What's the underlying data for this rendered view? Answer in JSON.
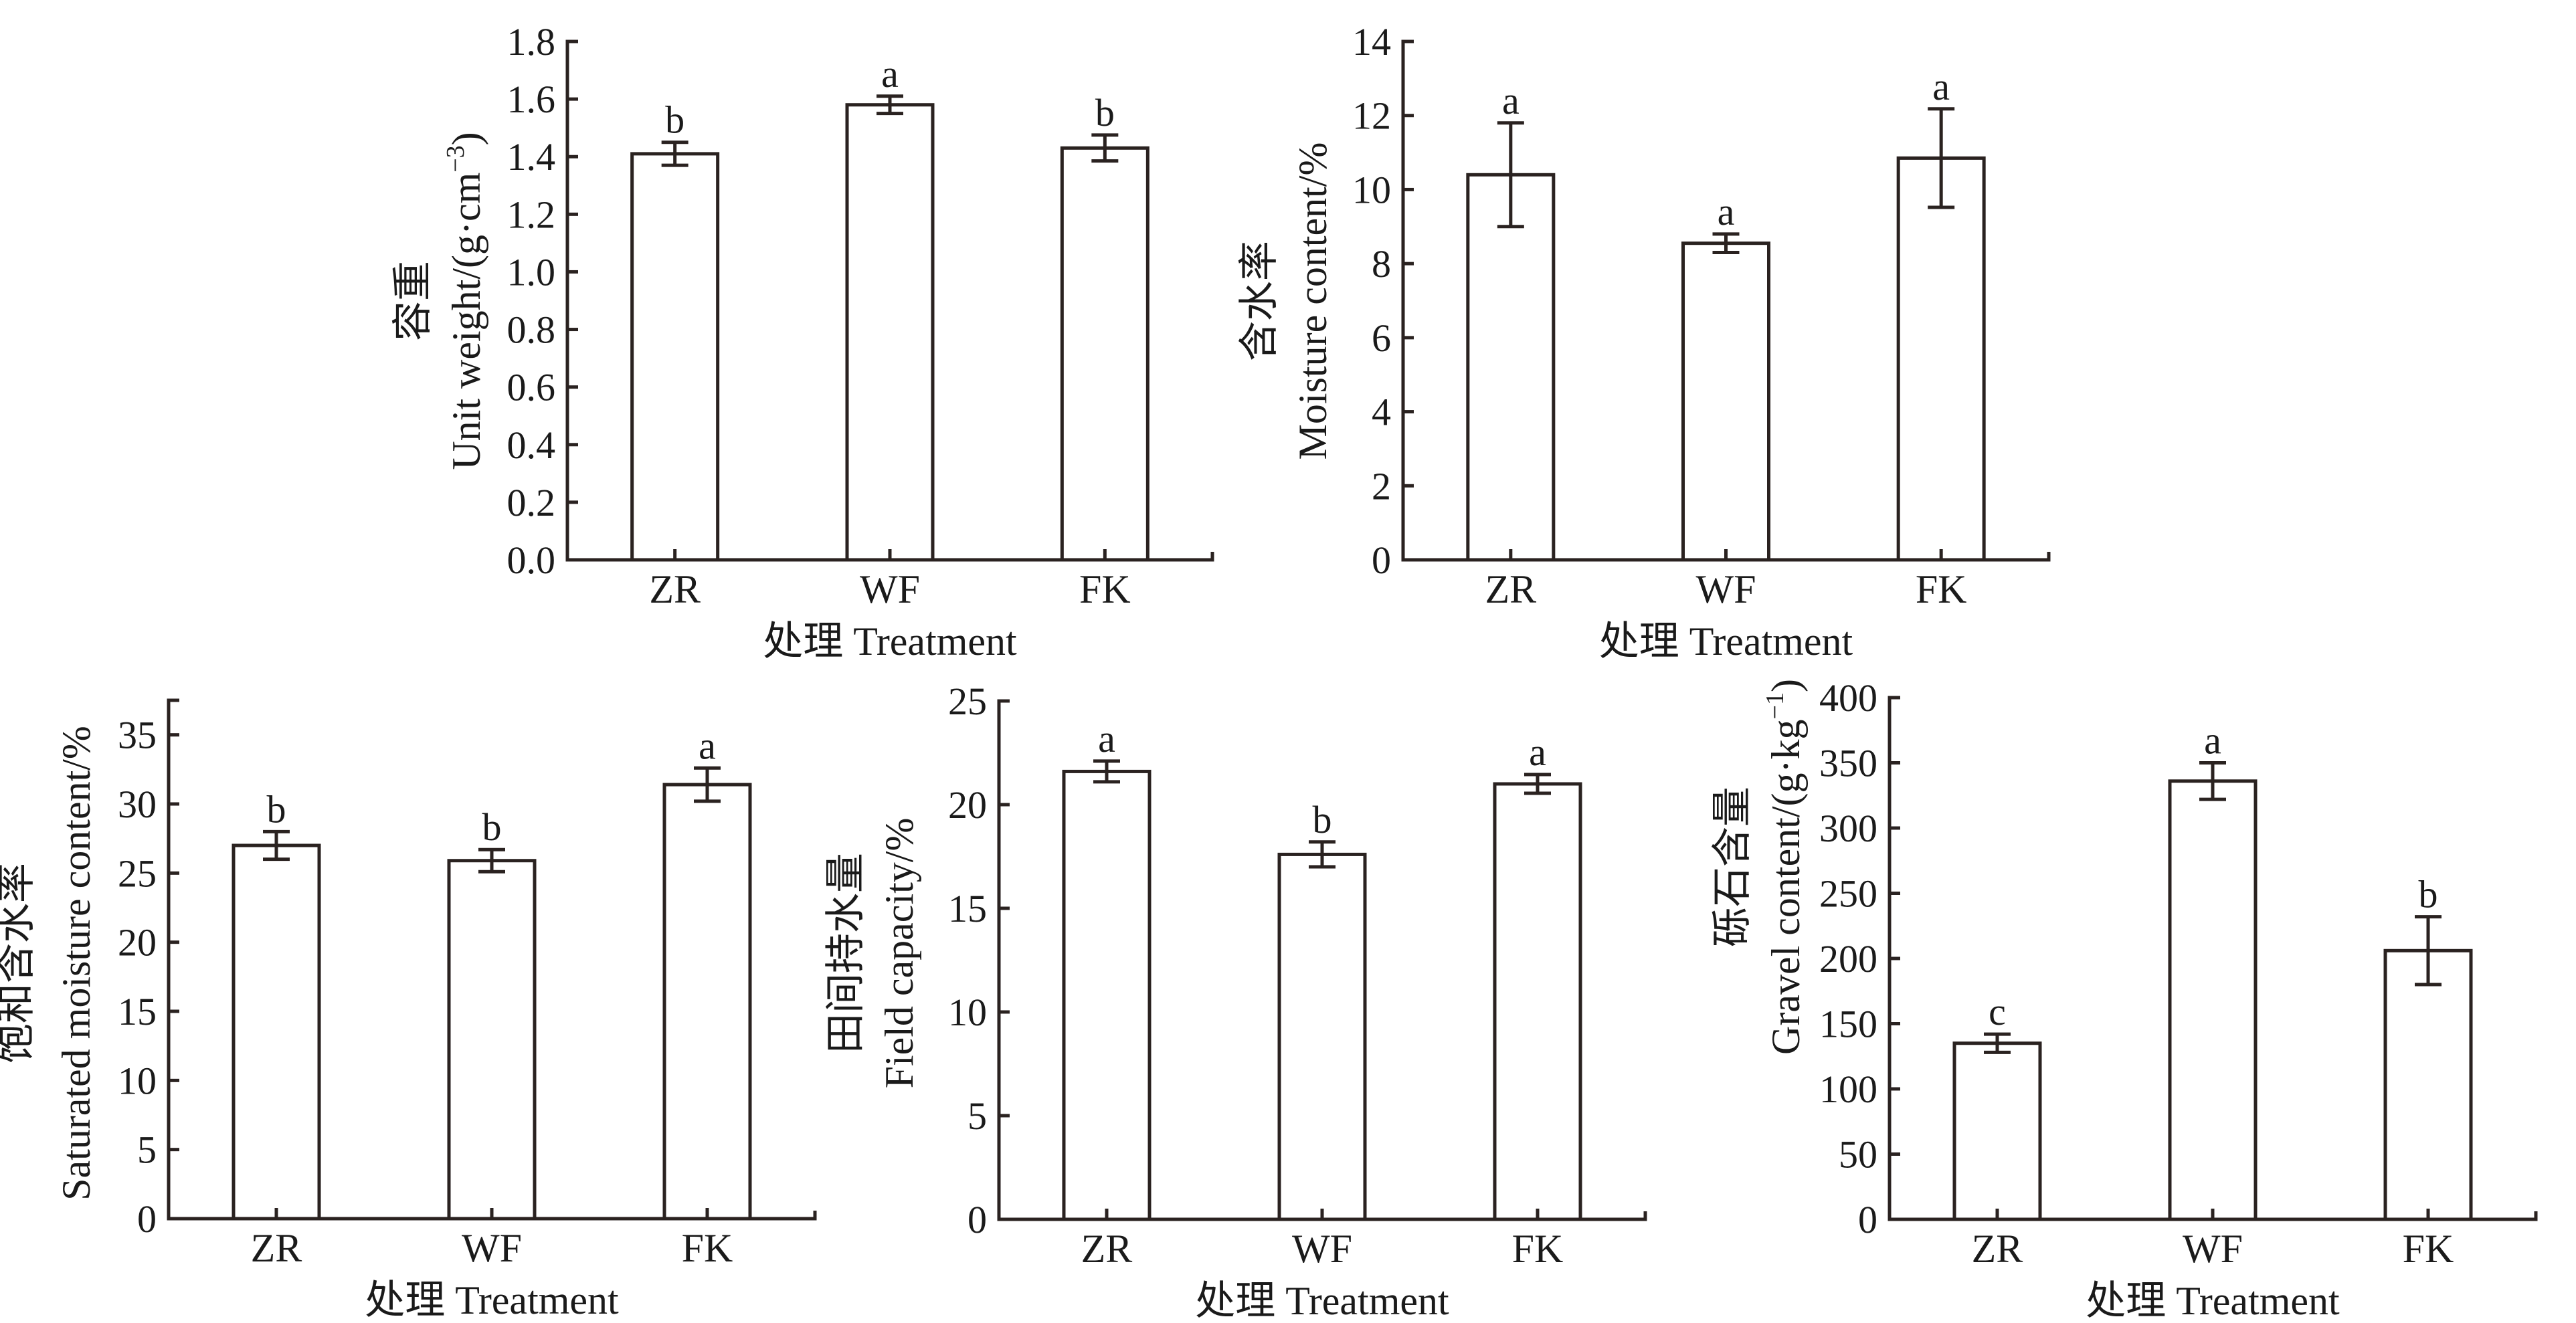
{
  "chart_data": [
    {
      "id": "unit-weight",
      "type": "bar",
      "categories": [
        "ZR",
        "WF",
        "FK"
      ],
      "values": [
        1.41,
        1.58,
        1.43
      ],
      "errors": [
        0.04,
        0.03,
        0.045
      ],
      "significance": [
        "b",
        "a",
        "b"
      ],
      "ylabel_cn": "容重",
      "ylabel_en": "Unit weight/(g·cm",
      "ylabel_sup": "−3",
      "ylabel_tail": ")",
      "xlabel": "处理 Treatment",
      "ylim": [
        0,
        1.8
      ],
      "yticks": [
        0.0,
        0.2,
        0.4,
        0.6,
        0.8,
        1.0,
        1.2,
        1.4,
        1.6,
        1.8
      ],
      "ytick_labels": [
        "0.0",
        "0.2",
        "0.4",
        "0.6",
        "0.8",
        "1.0",
        "1.2",
        "1.4",
        "1.6",
        "1.8"
      ],
      "grid": false
    },
    {
      "id": "moisture-content",
      "type": "bar",
      "categories": [
        "ZR",
        "WF",
        "FK"
      ],
      "values": [
        10.4,
        8.55,
        10.85
      ],
      "errors": [
        1.4,
        0.25,
        1.33
      ],
      "significance": [
        "a",
        "a",
        "a"
      ],
      "ylabel_cn": "含水率",
      "ylabel_en": "Moisture content/%",
      "ylabel_sup": "",
      "ylabel_tail": "",
      "xlabel": "处理 Treatment",
      "ylim": [
        0,
        14
      ],
      "yticks": [
        0,
        2,
        4,
        6,
        8,
        10,
        12,
        14
      ],
      "ytick_labels": [
        "0",
        "2",
        "4",
        "6",
        "8",
        "10",
        "12",
        "14"
      ],
      "grid": false
    },
    {
      "id": "saturated-moisture-content",
      "type": "bar",
      "categories": [
        "ZR",
        "WF",
        "FK"
      ],
      "values": [
        27.0,
        25.9,
        31.4
      ],
      "errors": [
        1.0,
        0.8,
        1.2
      ],
      "significance": [
        "b",
        "b",
        "a"
      ],
      "ylabel_cn": "饱和含水率",
      "ylabel_en": "Saturated moisture content/%",
      "ylabel_sup": "",
      "ylabel_tail": "",
      "xlabel": "处理 Treatment",
      "ylim": [
        0,
        37.5
      ],
      "yticks": [
        0,
        5,
        10,
        15,
        20,
        25,
        30,
        35,
        37.5
      ],
      "ytick_labels": [
        "0",
        "5",
        "10",
        "15",
        "20",
        "25",
        "30",
        "35",
        ""
      ],
      "grid": false
    },
    {
      "id": "field-capacity",
      "type": "bar",
      "categories": [
        "ZR",
        "WF",
        "FK"
      ],
      "values": [
        21.6,
        17.6,
        21.0
      ],
      "errors": [
        0.5,
        0.6,
        0.45
      ],
      "significance": [
        "a",
        "b",
        "a"
      ],
      "ylabel_cn": "田间持水量",
      "ylabel_en": "Field capacity/%",
      "ylabel_sup": "",
      "ylabel_tail": "",
      "xlabel": "处理 Treatment",
      "ylim": [
        0,
        25
      ],
      "yticks": [
        0,
        5,
        10,
        15,
        20,
        25
      ],
      "ytick_labels": [
        "0",
        "5",
        "10",
        "15",
        "20",
        "25"
      ],
      "grid": false
    },
    {
      "id": "gravel-content",
      "type": "bar",
      "categories": [
        "ZR",
        "WF",
        "FK"
      ],
      "values": [
        135,
        336,
        206
      ],
      "errors": [
        7,
        14,
        26
      ],
      "significance": [
        "c",
        "a",
        "b"
      ],
      "ylabel_cn": "砾石含量",
      "ylabel_en": "Gravel content/(g·kg",
      "ylabel_sup": "−1",
      "ylabel_tail": ")",
      "xlabel": "处理 Treatment",
      "ylim": [
        0,
        400
      ],
      "yticks": [
        0,
        50,
        100,
        150,
        200,
        250,
        300,
        350,
        400
      ],
      "ytick_labels": [
        "0",
        "50",
        "100",
        "150",
        "200",
        "250",
        "300",
        "350",
        "400"
      ],
      "grid": false
    }
  ],
  "colors": {
    "axis": "#2a2220",
    "bar_fill": "#ffffff",
    "text": "#1a1a1a"
  }
}
